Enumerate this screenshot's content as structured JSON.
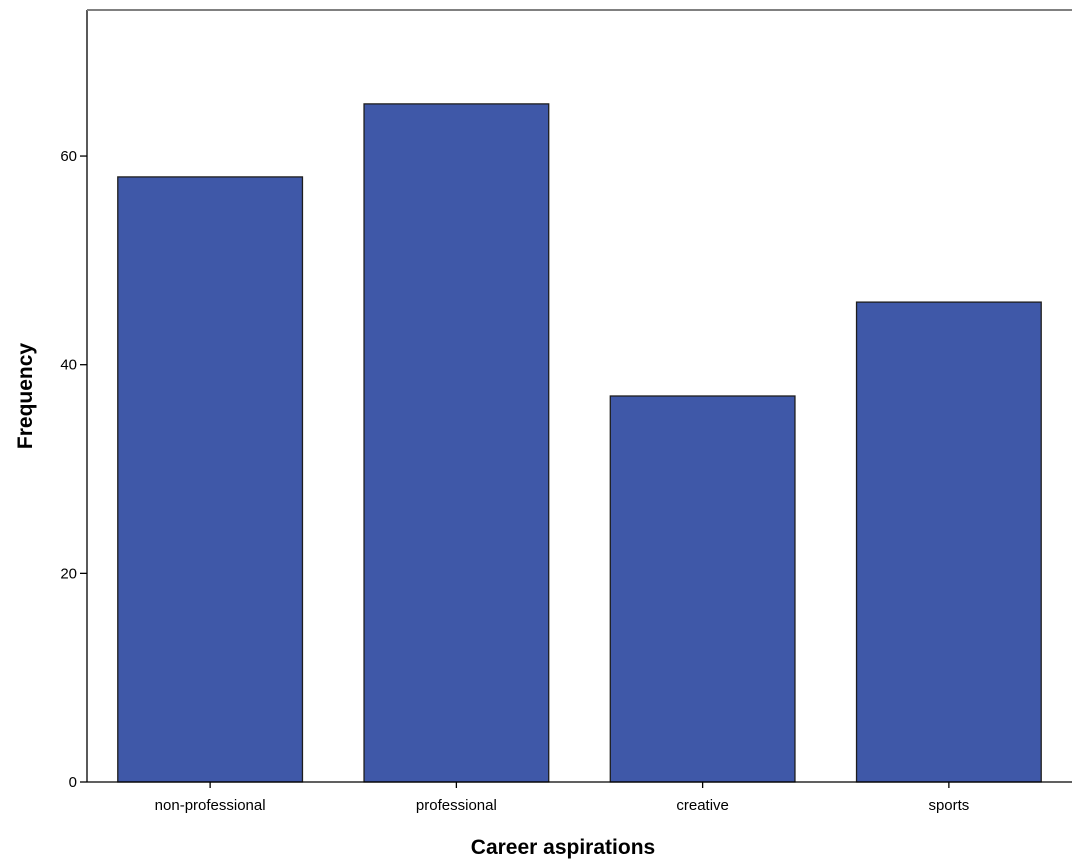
{
  "chart_data": {
    "type": "bar",
    "title": "",
    "xlabel": "Career aspirations",
    "ylabel": "Frequency",
    "categories": [
      "non-professional",
      "professional",
      "creative",
      "sports"
    ],
    "values": [
      58,
      65,
      37,
      46
    ],
    "ylim": [
      0,
      74
    ],
    "yticks": [
      0,
      20,
      40,
      60
    ],
    "grid": false,
    "legend": "none",
    "bar_color": "#3f58a8",
    "bar_edge_color": "#1e1e1e"
  }
}
